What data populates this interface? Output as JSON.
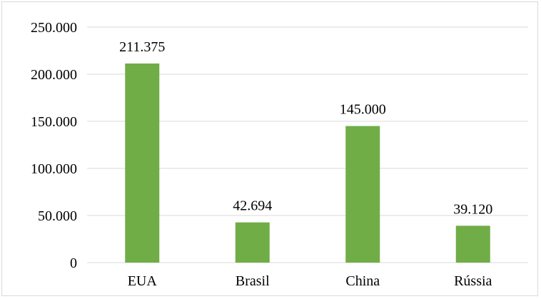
{
  "chart_data": {
    "type": "bar",
    "categories": [
      "EUA",
      "Brasil",
      "China",
      "Rússia"
    ],
    "values": [
      211375,
      42694,
      145000,
      39120
    ],
    "value_labels": [
      "211.375",
      "42.694",
      "145.000",
      "39.120"
    ],
    "title": "",
    "xlabel": "",
    "ylabel": "",
    "ylim": [
      0,
      250000
    ],
    "yticks": [
      0,
      50000,
      100000,
      150000,
      200000,
      250000
    ],
    "ytick_labels": [
      "0",
      "50.000",
      "100.000",
      "150.000",
      "200.000",
      "250.000"
    ],
    "grid": true,
    "legend": "none",
    "bar_color": "#70ad47",
    "grid_color": "#d9d9d9"
  }
}
